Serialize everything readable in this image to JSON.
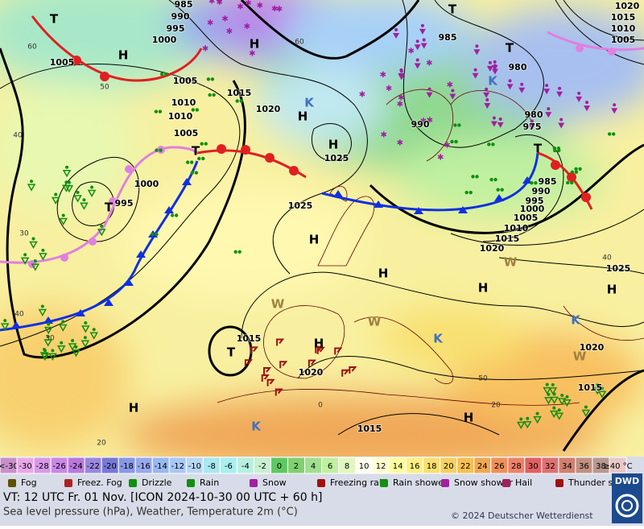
{
  "map": {
    "isobar_labels": [
      985,
      990,
      995,
      1000,
      1005,
      1005,
      1015,
      1010,
      1010,
      1005,
      1020,
      1025,
      1000,
      995,
      1025,
      985,
      980,
      980,
      975,
      990,
      985,
      990,
      995,
      1000,
      1005,
      1010,
      1015,
      1020,
      1020,
      1015,
      1010,
      1005,
      1025,
      1020,
      1015,
      1015,
      1020,
      1015
    ],
    "centers": [
      "H",
      "H",
      "T",
      "H",
      "K",
      "H",
      "T",
      "T",
      "H",
      "H",
      "H",
      "H",
      "T",
      "H",
      "H",
      "H",
      "T",
      "T",
      "T",
      "K",
      "K",
      "K",
      "W",
      "W",
      "W",
      "W",
      "K"
    ],
    "grid_labels": [
      60,
      50,
      40,
      30,
      40,
      30,
      60,
      20,
      0,
      20,
      40,
      50
    ]
  },
  "color_scale": {
    "below": "<-30",
    "above": "≥40 °C",
    "below_color": "#c890c8",
    "above_color": "#e8c8c8",
    "temperatures": [
      {
        "t": -30,
        "color": "#e8a8e8"
      },
      {
        "t": -28,
        "color": "#d898e8"
      },
      {
        "t": -26,
        "color": "#c888e8"
      },
      {
        "t": -24,
        "color": "#b878e0"
      },
      {
        "t": -22,
        "color": "#9888e0"
      },
      {
        "t": -20,
        "color": "#7878d8"
      },
      {
        "t": -18,
        "color": "#8898e8"
      },
      {
        "t": -16,
        "color": "#98a8f0"
      },
      {
        "t": -14,
        "color": "#98b8f0"
      },
      {
        "t": -12,
        "color": "#a8c8f8"
      },
      {
        "t": -10,
        "color": "#b8d8f8"
      },
      {
        "t": -8,
        "color": "#a8e8f0"
      },
      {
        "t": -6,
        "color": "#a8f0f0"
      },
      {
        "t": -4,
        "color": "#b8f0e0"
      },
      {
        "t": -2,
        "color": "#c8f0d0"
      },
      {
        "t": 0,
        "color": "#60c860"
      },
      {
        "t": 2,
        "color": "#80d070"
      },
      {
        "t": 4,
        "color": "#a0e090"
      },
      {
        "t": 6,
        "color": "#c0f0a0"
      },
      {
        "t": 8,
        "color": "#e0f8c0"
      },
      {
        "t": 10,
        "color": "#fffff0"
      },
      {
        "t": 12,
        "color": "#ffffd0"
      },
      {
        "t": 14,
        "color": "#ffffa0"
      },
      {
        "t": 16,
        "color": "#fff080"
      },
      {
        "t": 18,
        "color": "#f8e070"
      },
      {
        "t": 20,
        "color": "#f8d060"
      },
      {
        "t": 22,
        "color": "#f8c050"
      },
      {
        "t": 24,
        "color": "#f0a850"
      },
      {
        "t": 26,
        "color": "#f09058"
      },
      {
        "t": 28,
        "color": "#f08068"
      },
      {
        "t": 30,
        "color": "#e06060"
      },
      {
        "t": 32,
        "color": "#e07070"
      },
      {
        "t": 34,
        "color": "#d08070"
      },
      {
        "t": 36,
        "color": "#c09080"
      },
      {
        "t": 38,
        "color": "#b89890"
      }
    ]
  },
  "legend": [
    "Fog",
    "Freez. Fog",
    "Drizzle",
    "Rain",
    "Snow",
    "Freezing rain",
    "Rain shower",
    "Snow shower",
    "Hail",
    "Thunder storm"
  ],
  "footer": {
    "valid_time": "VT: 12 UTC Fr.  01 Nov. [ICON 2024-10-30  00 UTC + 60 h]",
    "description": "Sea level pressure (hPa), Weather, Temperature 2m (°C)",
    "copyright": "© 2024 Deutscher Wetterdienst",
    "logo": "DWD"
  }
}
